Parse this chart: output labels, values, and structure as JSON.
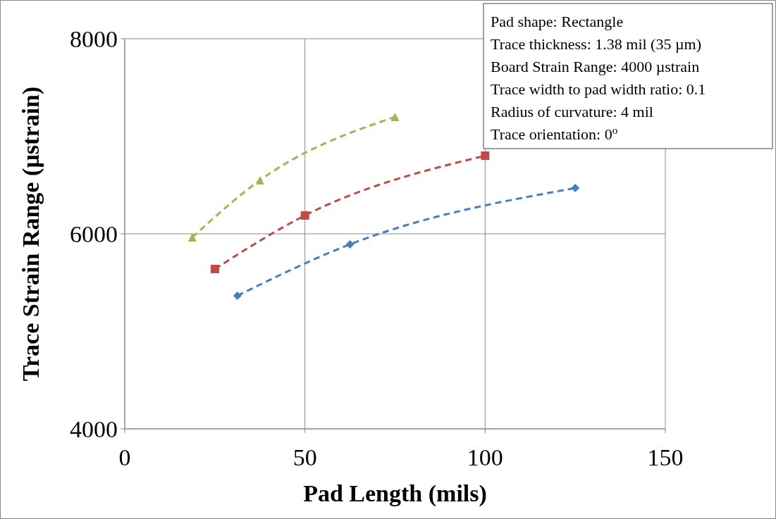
{
  "chart_data": {
    "type": "line",
    "xlabel": "Pad Length (mils)",
    "ylabel": "Trace Strain Range (µstrain)",
    "xlim": [
      0,
      150
    ],
    "xticks": [
      0,
      50,
      100,
      150
    ],
    "ylim": [
      4000,
      8000
    ],
    "yticks": [
      4000,
      6000,
      8000
    ],
    "grid": true,
    "line_style": "dashed",
    "series": [
      {
        "color": "#4a7ebb",
        "marker": "diamond",
        "x": [
          31.25,
          62.5,
          125
        ],
        "values": [
          5365,
          5892,
          6469
        ]
      },
      {
        "color": "#be4b48",
        "marker": "square",
        "x": [
          25,
          50,
          100
        ],
        "values": [
          5639,
          6188,
          6801
        ]
      },
      {
        "color": "#98b954",
        "marker": "triangle",
        "x": [
          18.75,
          37.5,
          75
        ],
        "values": [
          5964,
          6549,
          7199
        ]
      }
    ],
    "annotations": [
      "Pad shape: Rectangle",
      "Trace thickness: 1.38 mil (35 µm)",
      "Board Strain Range: 4000 µstrain",
      "Trace width to pad width ratio: 0.1",
      "Radius of curvature: 4 mil",
      "Trace orientation: 0$^{o}$"
    ]
  }
}
